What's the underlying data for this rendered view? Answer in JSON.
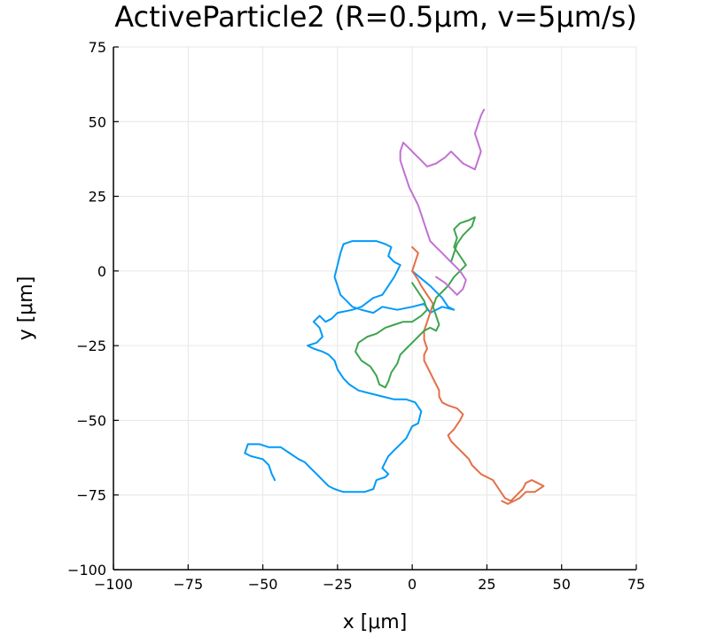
{
  "chart_data": {
    "type": "line",
    "title": "ActiveParticle2 (R=0.5μm, v=5μm/s)",
    "xlabel": "x [μm]",
    "ylabel": "y [μm]",
    "xlim": [
      -100,
      75
    ],
    "ylim": [
      -100,
      75
    ],
    "xticks": [
      -100,
      -75,
      -50,
      -25,
      0,
      25,
      50,
      75
    ],
    "yticks": [
      -100,
      -75,
      -50,
      -25,
      0,
      25,
      50,
      75
    ],
    "xtick_labels": [
      "−100",
      "−75",
      "−50",
      "−25",
      "0",
      "25",
      "50",
      "75"
    ],
    "ytick_labels": [
      "−100",
      "−75",
      "−50",
      "−25",
      "0",
      "25",
      "50",
      "75"
    ],
    "grid": true,
    "legend": "none",
    "series": [
      {
        "color": "#009AFA",
        "points": [
          [
            0,
            0
          ],
          [
            6,
            -5
          ],
          [
            10,
            -9
          ],
          [
            12,
            -12
          ],
          [
            14,
            -13
          ],
          [
            10,
            -12
          ],
          [
            6,
            -14
          ],
          [
            4,
            -11
          ],
          [
            0,
            -12
          ],
          [
            -5,
            -13
          ],
          [
            -10,
            -12
          ],
          [
            -13,
            -14
          ],
          [
            -17,
            -13
          ],
          [
            -20,
            -12
          ],
          [
            -22,
            -10
          ],
          [
            -24,
            -8
          ],
          [
            -25,
            -5
          ],
          [
            -26,
            -2
          ],
          [
            -25,
            2
          ],
          [
            -24,
            6
          ],
          [
            -23,
            9
          ],
          [
            -20,
            10
          ],
          [
            -16,
            10
          ],
          [
            -12,
            10
          ],
          [
            -9,
            9
          ],
          [
            -7,
            8
          ],
          [
            -8,
            5
          ],
          [
            -6,
            3
          ],
          [
            -4,
            2
          ],
          [
            -6,
            -2
          ],
          [
            -8,
            -5
          ],
          [
            -10,
            -8
          ],
          [
            -13,
            -9
          ],
          [
            -17,
            -12
          ],
          [
            -20,
            -13
          ],
          [
            -25,
            -14
          ],
          [
            -27,
            -16
          ],
          [
            -29,
            -17
          ],
          [
            -31,
            -15
          ],
          [
            -33,
            -17
          ],
          [
            -31,
            -19
          ],
          [
            -30,
            -22
          ],
          [
            -32,
            -24
          ],
          [
            -35,
            -25
          ],
          [
            -33,
            -26
          ],
          [
            -30,
            -27
          ],
          [
            -28,
            -28
          ],
          [
            -26,
            -30
          ],
          [
            -25,
            -33
          ],
          [
            -23,
            -36
          ],
          [
            -21,
            -38
          ],
          [
            -18,
            -40
          ],
          [
            -14,
            -41
          ],
          [
            -10,
            -42
          ],
          [
            -6,
            -43
          ],
          [
            -2,
            -43
          ],
          [
            1,
            -44
          ],
          [
            3,
            -47
          ],
          [
            2,
            -51
          ],
          [
            0,
            -52
          ],
          [
            -2,
            -56
          ],
          [
            -4,
            -58
          ],
          [
            -6,
            -60
          ],
          [
            -8,
            -62
          ],
          [
            -9,
            -64
          ],
          [
            -10,
            -66
          ],
          [
            -9,
            -67
          ],
          [
            -8,
            -68
          ],
          [
            -9,
            -69
          ],
          [
            -12,
            -70
          ],
          [
            -13,
            -73
          ],
          [
            -16,
            -74
          ],
          [
            -20,
            -74
          ],
          [
            -23,
            -74
          ],
          [
            -26,
            -73
          ],
          [
            -28,
            -72
          ],
          [
            -30,
            -70
          ],
          [
            -32,
            -68
          ],
          [
            -34,
            -66
          ],
          [
            -36,
            -64
          ],
          [
            -38,
            -63
          ],
          [
            -41,
            -61
          ],
          [
            -44,
            -59
          ],
          [
            -48,
            -59
          ],
          [
            -51,
            -58
          ],
          [
            -53,
            -58
          ],
          [
            -55,
            -58
          ],
          [
            -56,
            -61
          ],
          [
            -54,
            -62
          ],
          [
            -50,
            -63
          ],
          [
            -48,
            -65
          ],
          [
            -47,
            -68
          ],
          [
            -46,
            -70
          ]
        ]
      },
      {
        "color": "#E36F47",
        "points": [
          [
            0,
            8
          ],
          [
            2,
            6
          ],
          [
            1,
            3
          ],
          [
            0,
            0
          ],
          [
            2,
            -3
          ],
          [
            3,
            -5
          ],
          [
            5,
            -8
          ],
          [
            7,
            -11
          ],
          [
            6,
            -14
          ],
          [
            5,
            -17
          ],
          [
            4,
            -20
          ],
          [
            4,
            -23
          ],
          [
            5,
            -26
          ],
          [
            4,
            -28
          ],
          [
            4,
            -30
          ],
          [
            5,
            -32
          ],
          [
            6,
            -34
          ],
          [
            7,
            -36
          ],
          [
            8,
            -38
          ],
          [
            9,
            -40
          ],
          [
            9,
            -42
          ],
          [
            10,
            -44
          ],
          [
            12,
            -45
          ],
          [
            15,
            -46
          ],
          [
            17,
            -48
          ],
          [
            16,
            -50
          ],
          [
            14,
            -53
          ],
          [
            12,
            -55
          ],
          [
            13,
            -57
          ],
          [
            15,
            -59
          ],
          [
            17,
            -61
          ],
          [
            19,
            -63
          ],
          [
            20,
            -65
          ],
          [
            22,
            -67
          ],
          [
            23,
            -68
          ],
          [
            25,
            -69
          ],
          [
            27,
            -70
          ],
          [
            29,
            -73
          ],
          [
            31,
            -76
          ],
          [
            33,
            -77
          ],
          [
            35,
            -75
          ],
          [
            37,
            -73
          ],
          [
            38,
            -71
          ],
          [
            40,
            -70
          ],
          [
            42,
            -71
          ],
          [
            44,
            -72
          ],
          [
            41,
            -74
          ],
          [
            38,
            -74
          ],
          [
            36,
            -76
          ],
          [
            34,
            -77
          ],
          [
            32,
            -78
          ],
          [
            30,
            -77
          ]
        ]
      },
      {
        "color": "#3EA44E",
        "points": [
          [
            0,
            -4
          ],
          [
            2,
            -7
          ],
          [
            4,
            -10
          ],
          [
            5,
            -13
          ],
          [
            3,
            -15
          ],
          [
            0,
            -17
          ],
          [
            -3,
            -17
          ],
          [
            -6,
            -18
          ],
          [
            -9,
            -19
          ],
          [
            -12,
            -21
          ],
          [
            -15,
            -22
          ],
          [
            -18,
            -24
          ],
          [
            -19,
            -27
          ],
          [
            -17,
            -30
          ],
          [
            -14,
            -32
          ],
          [
            -12,
            -35
          ],
          [
            -11,
            -38
          ],
          [
            -9,
            -39
          ],
          [
            -8,
            -37
          ],
          [
            -7,
            -34
          ],
          [
            -5,
            -31
          ],
          [
            -4,
            -28
          ],
          [
            -2,
            -26
          ],
          [
            0,
            -24
          ],
          [
            2,
            -22
          ],
          [
            4,
            -20
          ],
          [
            6,
            -19
          ],
          [
            8,
            -20
          ],
          [
            9,
            -18
          ],
          [
            8,
            -15
          ],
          [
            7,
            -12
          ],
          [
            8,
            -9
          ],
          [
            10,
            -7
          ],
          [
            12,
            -5
          ],
          [
            14,
            -2
          ],
          [
            16,
            0
          ],
          [
            18,
            2
          ],
          [
            16,
            5
          ],
          [
            14,
            8
          ],
          [
            15,
            11
          ],
          [
            14,
            14
          ],
          [
            16,
            16
          ],
          [
            19,
            17
          ],
          [
            21,
            18
          ],
          [
            20,
            15
          ],
          [
            17,
            12
          ],
          [
            15,
            9
          ],
          [
            14,
            6
          ],
          [
            13,
            3
          ]
        ]
      },
      {
        "color": "#C271D2",
        "points": [
          [
            8,
            -2
          ],
          [
            11,
            -4
          ],
          [
            13,
            -6
          ],
          [
            15,
            -8
          ],
          [
            17,
            -6
          ],
          [
            18,
            -3
          ],
          [
            16,
            0
          ],
          [
            14,
            2
          ],
          [
            12,
            4
          ],
          [
            10,
            6
          ],
          [
            8,
            8
          ],
          [
            6,
            10
          ],
          [
            5,
            13
          ],
          [
            4,
            16
          ],
          [
            3,
            19
          ],
          [
            2,
            22
          ],
          [
            1,
            24
          ],
          [
            0,
            26
          ],
          [
            -1,
            28
          ],
          [
            -2,
            31
          ],
          [
            -3,
            34
          ],
          [
            -4,
            37
          ],
          [
            -4,
            40
          ],
          [
            -3,
            43
          ],
          [
            -1,
            41
          ],
          [
            1,
            39
          ],
          [
            3,
            37
          ],
          [
            5,
            35
          ],
          [
            8,
            36
          ],
          [
            11,
            38
          ],
          [
            13,
            40
          ],
          [
            15,
            38
          ],
          [
            17,
            36
          ],
          [
            19,
            35
          ],
          [
            21,
            34
          ],
          [
            22,
            37
          ],
          [
            23,
            40
          ],
          [
            22,
            43
          ],
          [
            21,
            46
          ],
          [
            22,
            49
          ],
          [
            23,
            52
          ],
          [
            24,
            54
          ]
        ]
      }
    ]
  }
}
